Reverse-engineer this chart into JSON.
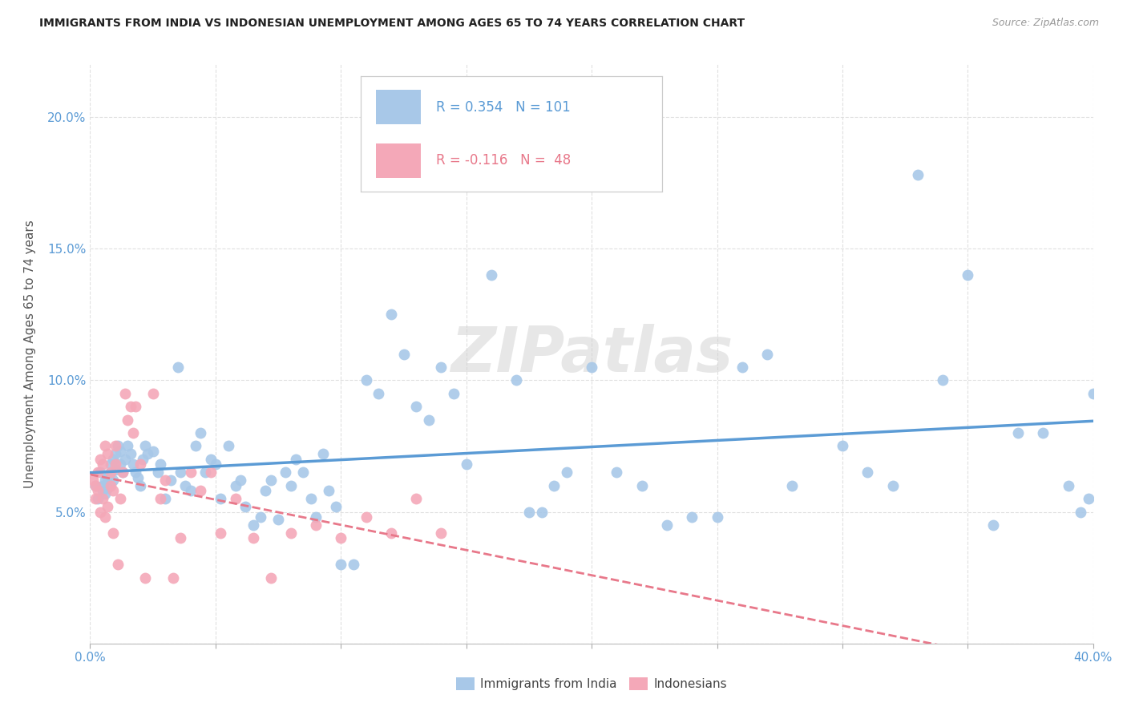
{
  "title": "IMMIGRANTS FROM INDIA VS INDONESIAN UNEMPLOYMENT AMONG AGES 65 TO 74 YEARS CORRELATION CHART",
  "source": "Source: ZipAtlas.com",
  "ylabel": "Unemployment Among Ages 65 to 74 years",
  "xlim": [
    0.0,
    0.4
  ],
  "ylim": [
    0.0,
    0.22
  ],
  "blue_R": 0.354,
  "blue_N": 101,
  "pink_R": -0.116,
  "pink_N": 48,
  "blue_color": "#a8c8e8",
  "pink_color": "#f4a8b8",
  "blue_line_color": "#5b9bd5",
  "pink_line_color": "#e8788a",
  "legend_blue_label": "Immigrants from India",
  "legend_pink_label": "Indonesians",
  "watermark": "ZIPatlas",
  "background_color": "#ffffff",
  "grid_color": "#dddddd",
  "blue_x": [
    0.002,
    0.003,
    0.004,
    0.005,
    0.005,
    0.006,
    0.006,
    0.007,
    0.007,
    0.008,
    0.008,
    0.009,
    0.009,
    0.01,
    0.01,
    0.011,
    0.012,
    0.012,
    0.013,
    0.014,
    0.015,
    0.016,
    0.017,
    0.018,
    0.019,
    0.02,
    0.021,
    0.022,
    0.023,
    0.025,
    0.027,
    0.028,
    0.03,
    0.032,
    0.035,
    0.036,
    0.038,
    0.04,
    0.042,
    0.044,
    0.046,
    0.048,
    0.05,
    0.052,
    0.055,
    0.058,
    0.06,
    0.062,
    0.065,
    0.068,
    0.07,
    0.072,
    0.075,
    0.078,
    0.08,
    0.082,
    0.085,
    0.088,
    0.09,
    0.093,
    0.095,
    0.098,
    0.1,
    0.105,
    0.11,
    0.115,
    0.12,
    0.125,
    0.13,
    0.135,
    0.14,
    0.145,
    0.15,
    0.16,
    0.17,
    0.175,
    0.18,
    0.185,
    0.19,
    0.2,
    0.21,
    0.22,
    0.23,
    0.24,
    0.25,
    0.26,
    0.27,
    0.28,
    0.3,
    0.31,
    0.32,
    0.33,
    0.34,
    0.35,
    0.36,
    0.37,
    0.38,
    0.39,
    0.395,
    0.398,
    0.4
  ],
  "blue_y": [
    0.06,
    0.055,
    0.065,
    0.06,
    0.058,
    0.062,
    0.057,
    0.063,
    0.059,
    0.065,
    0.068,
    0.07,
    0.062,
    0.072,
    0.066,
    0.075,
    0.068,
    0.073,
    0.065,
    0.07,
    0.075,
    0.072,
    0.068,
    0.065,
    0.063,
    0.06,
    0.07,
    0.075,
    0.072,
    0.073,
    0.065,
    0.068,
    0.055,
    0.062,
    0.105,
    0.065,
    0.06,
    0.058,
    0.075,
    0.08,
    0.065,
    0.07,
    0.068,
    0.055,
    0.075,
    0.06,
    0.062,
    0.052,
    0.045,
    0.048,
    0.058,
    0.062,
    0.047,
    0.065,
    0.06,
    0.07,
    0.065,
    0.055,
    0.048,
    0.072,
    0.058,
    0.052,
    0.03,
    0.03,
    0.1,
    0.095,
    0.125,
    0.11,
    0.09,
    0.085,
    0.105,
    0.095,
    0.068,
    0.14,
    0.1,
    0.05,
    0.05,
    0.06,
    0.065,
    0.105,
    0.065,
    0.06,
    0.045,
    0.048,
    0.048,
    0.105,
    0.11,
    0.06,
    0.075,
    0.065,
    0.06,
    0.178,
    0.1,
    0.14,
    0.045,
    0.08,
    0.08,
    0.06,
    0.05,
    0.055,
    0.095
  ],
  "pink_x": [
    0.001,
    0.002,
    0.002,
    0.003,
    0.003,
    0.004,
    0.004,
    0.005,
    0.005,
    0.006,
    0.006,
    0.007,
    0.007,
    0.008,
    0.008,
    0.009,
    0.009,
    0.01,
    0.01,
    0.011,
    0.012,
    0.013,
    0.014,
    0.015,
    0.016,
    0.017,
    0.018,
    0.02,
    0.022,
    0.025,
    0.028,
    0.03,
    0.033,
    0.036,
    0.04,
    0.044,
    0.048,
    0.052,
    0.058,
    0.065,
    0.072,
    0.08,
    0.09,
    0.1,
    0.11,
    0.12,
    0.13,
    0.14
  ],
  "pink_y": [
    0.062,
    0.055,
    0.06,
    0.058,
    0.065,
    0.07,
    0.05,
    0.068,
    0.055,
    0.075,
    0.048,
    0.072,
    0.052,
    0.065,
    0.06,
    0.042,
    0.058,
    0.068,
    0.075,
    0.03,
    0.055,
    0.065,
    0.095,
    0.085,
    0.09,
    0.08,
    0.09,
    0.068,
    0.025,
    0.095,
    0.055,
    0.062,
    0.025,
    0.04,
    0.065,
    0.058,
    0.065,
    0.042,
    0.055,
    0.04,
    0.025,
    0.042,
    0.045,
    0.04,
    0.048,
    0.042,
    0.055,
    0.042
  ]
}
